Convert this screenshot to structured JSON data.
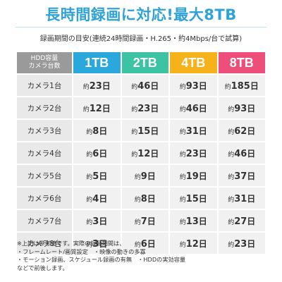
{
  "title": "長時間録画に対応!最大8TB",
  "subtitle": "録画期間の目安(連続24時間録画・H.265・約4Mbps/台で試算)",
  "corner": {
    "line1": "HDD容量",
    "line2": "カメラ台数"
  },
  "capacities": [
    {
      "label": "1TB",
      "color": "#2aa8dc"
    },
    {
      "label": "2TB",
      "color": "#3cc3a4"
    },
    {
      "label": "4TB",
      "color": "#f5b21b"
    },
    {
      "label": "8TB",
      "color": "#ee4f7a"
    }
  ],
  "rows": [
    {
      "camera": "カメラ1台",
      "values": [
        "23",
        "46",
        "93",
        "185"
      ]
    },
    {
      "camera": "カメラ2台",
      "values": [
        "12",
        "23",
        "46",
        "93"
      ]
    },
    {
      "camera": "カメラ3台",
      "values": [
        "8",
        "15",
        "31",
        "62"
      ]
    },
    {
      "camera": "カメラ4台",
      "values": [
        "6",
        "12",
        "23",
        "46"
      ]
    },
    {
      "camera": "カメラ5台",
      "values": [
        "5",
        "9",
        "19",
        "37"
      ]
    },
    {
      "camera": "カメラ6台",
      "values": [
        "4",
        "8",
        "15",
        "31"
      ]
    },
    {
      "camera": "カメラ7台",
      "values": [
        "3",
        "7",
        "13",
        "27"
      ]
    },
    {
      "camera": "カメラ8台",
      "values": [
        "3",
        "6",
        "12",
        "23"
      ]
    }
  ],
  "value_prefix": "約",
  "value_suffix": "日",
  "notes": [
    "※上記は参考値です。実際の録画期間は、",
    "・フレームレート/画質設定　・映像の動きの多寡",
    "・モーション録画、スケジュール録画の有無　・HDDの実効容量",
    "などで前後します。"
  ]
}
